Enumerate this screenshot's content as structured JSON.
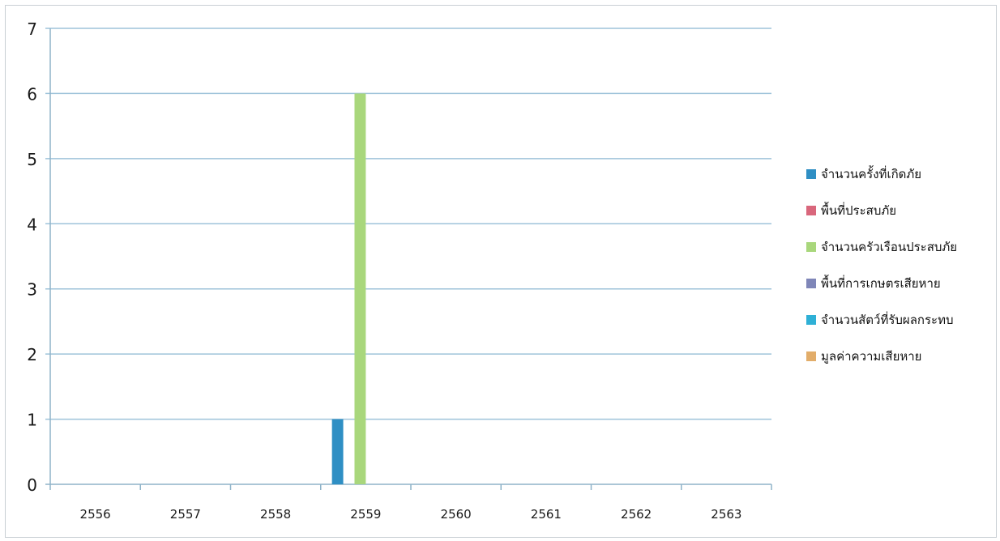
{
  "chart_data": {
    "type": "bar",
    "categories": [
      "2556",
      "2557",
      "2558",
      "2559",
      "2560",
      "2561",
      "2562",
      "2563"
    ],
    "ylim": [
      0,
      7
    ],
    "y_ticks": [
      "0",
      "1",
      "2",
      "3",
      "4",
      "5",
      "6",
      "7"
    ],
    "grid": true,
    "legend_position": "right",
    "series": [
      {
        "name": "จำนวนครั้งที่เกิดภัย",
        "color": "#2f8fc4",
        "values": [
          0,
          0,
          0,
          1,
          0,
          0,
          0,
          0
        ]
      },
      {
        "name": "พื้นที่ประสบภัย",
        "color": "#d9677c",
        "values": [
          0,
          0,
          0,
          0,
          0,
          0,
          0,
          0
        ]
      },
      {
        "name": "จำนวนครัวเรือนประสบภัย",
        "color": "#a9d77c",
        "values": [
          0,
          0,
          0,
          6,
          0,
          0,
          0,
          0
        ]
      },
      {
        "name": "พื้นที่การเกษตรเสียหาย",
        "color": "#7f86b8",
        "values": [
          0,
          0,
          0,
          0,
          0,
          0,
          0,
          0
        ]
      },
      {
        "name": "จำนวนสัตว์ที่รับผลกระทบ",
        "color": "#2fb0d6",
        "values": [
          0,
          0,
          0,
          0,
          0,
          0,
          0,
          0
        ]
      },
      {
        "name": "มูลค่าความเสียหาย",
        "color": "#e2ad6a",
        "values": [
          0,
          0,
          0,
          0,
          0,
          0,
          0,
          0
        ]
      }
    ]
  }
}
